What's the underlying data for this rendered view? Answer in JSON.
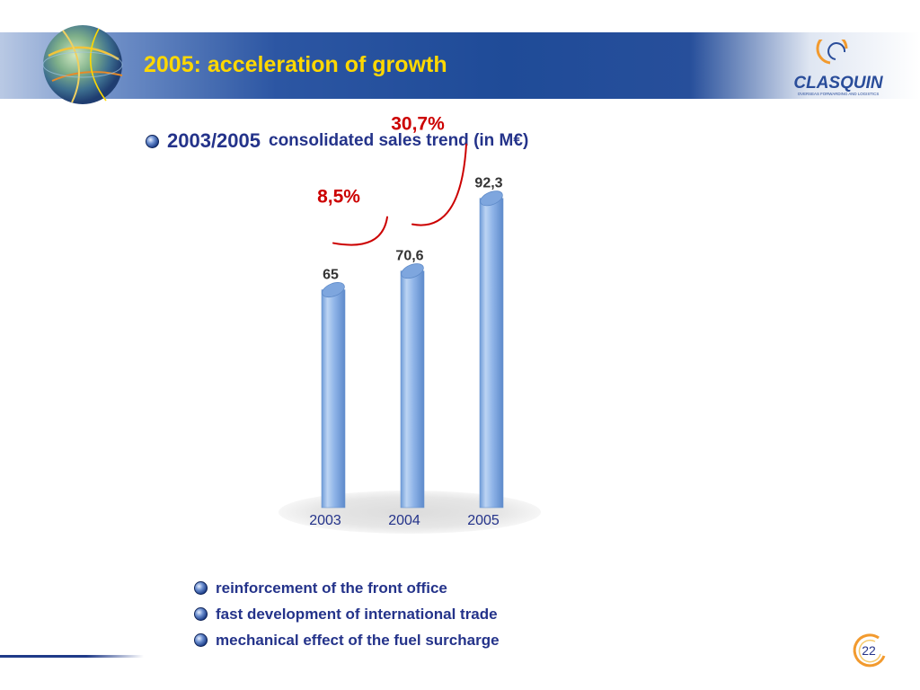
{
  "slide": {
    "title": "2005: acceleration of growth",
    "subtitle_years": "2003/2005",
    "subtitle_rest": "consolidated sales trend (in M€)",
    "page_number": "22"
  },
  "logo": {
    "name": "CLASQUIN",
    "tagline": "OVERSEAS FORWARDING AND LOGISTICS"
  },
  "colors": {
    "title": "#ffd800",
    "text_blue": "#24338a",
    "growth_red": "#cc0000",
    "bar_blue": "#8fb4e8"
  },
  "chart_data": {
    "type": "bar",
    "title": "",
    "xlabel": "",
    "ylabel": "",
    "categories": [
      "2003",
      "2004",
      "2005"
    ],
    "values": [
      65,
      70.6,
      92.3
    ],
    "value_labels": [
      "65",
      "70,6",
      "92,3"
    ],
    "growth": [
      {
        "from": "2003",
        "to": "2004",
        "label": "8,5%"
      },
      {
        "from": "2004",
        "to": "2005",
        "label": "30,7%"
      }
    ],
    "grid": false,
    "legend": "none"
  },
  "bullets": [
    "reinforcement of the front office",
    "fast development of international trade",
    "mechanical effect of the fuel surcharge"
  ]
}
